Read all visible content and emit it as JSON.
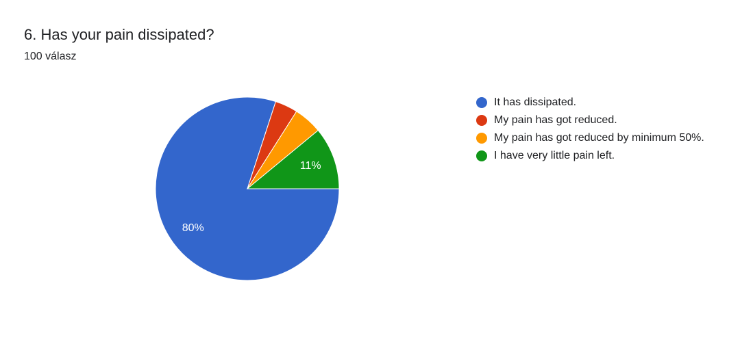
{
  "chart_data": {
    "type": "pie",
    "title": "6. Has your pain dissipated?",
    "subtitle": "100 válasz",
    "categories": [
      "It has dissipated.",
      "My pain has got reduced.",
      "My pain has got reduced by minimum 50%.",
      "I have very little pain left."
    ],
    "values": [
      80,
      4,
      5,
      11
    ],
    "value_labels": [
      "80%",
      null,
      null,
      "11%"
    ],
    "colors": [
      "#3366cc",
      "#dc3912",
      "#ff9900",
      "#109618"
    ],
    "legend": "right"
  }
}
